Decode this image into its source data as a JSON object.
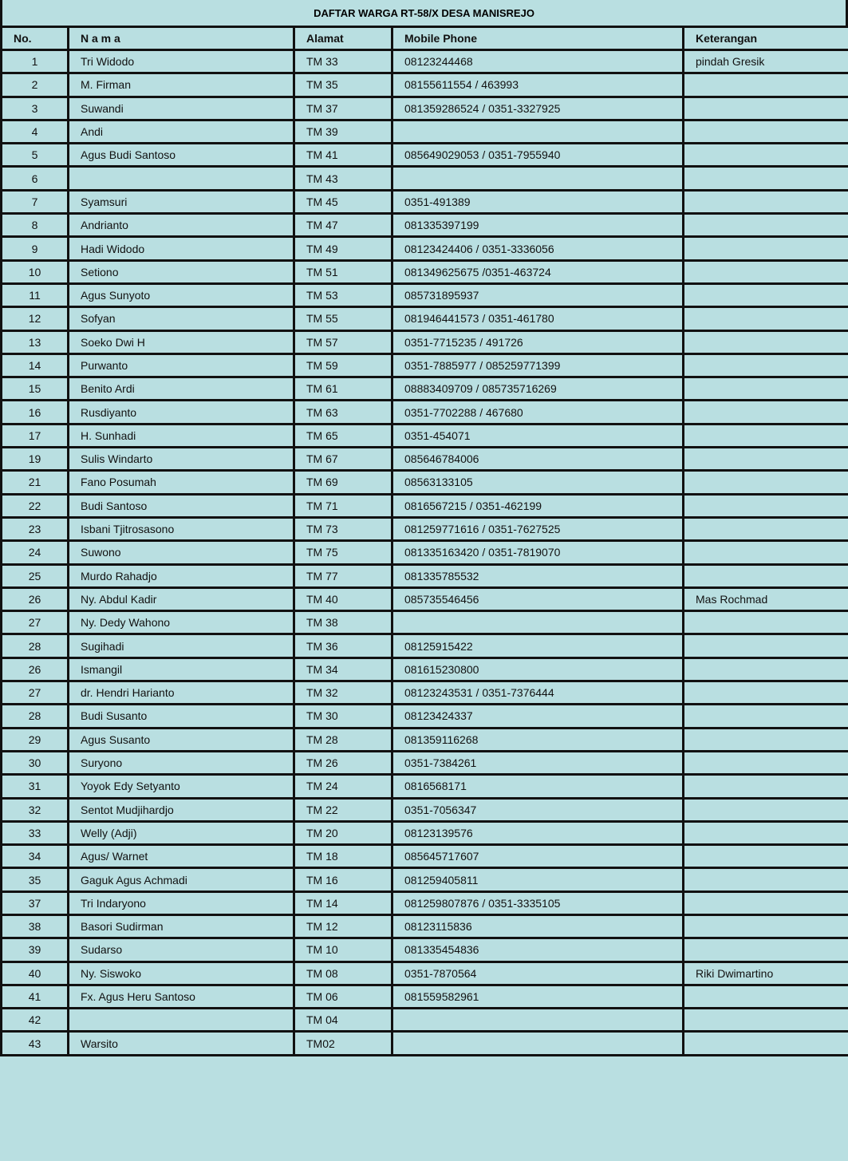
{
  "title": "DAFTAR WARGA RT-58/X DESA MANISREJO",
  "headers": {
    "no": "No.",
    "nama": "N a m a",
    "alamat": "Alamat",
    "phone": "Mobile Phone",
    "keterangan": "Keterangan"
  },
  "colors": {
    "background": "#b9dfe1",
    "border": "#111111"
  },
  "rows": [
    {
      "no": "1",
      "nama": "Tri Widodo",
      "alamat": "TM 33",
      "phone": "08123244468",
      "ket": "pindah Gresik"
    },
    {
      "no": "2",
      "nama": "M. Firman",
      "alamat": "TM 35",
      "phone": "08155611554 / 463993",
      "ket": ""
    },
    {
      "no": "3",
      "nama": "Suwandi",
      "alamat": "TM 37",
      "phone": "081359286524 / 0351-3327925",
      "ket": ""
    },
    {
      "no": "4",
      "nama": "Andi",
      "alamat": "TM 39",
      "phone": "",
      "ket": ""
    },
    {
      "no": "5",
      "nama": "Agus Budi Santoso",
      "alamat": "TM 41",
      "phone": "085649029053 / 0351-7955940",
      "ket": ""
    },
    {
      "no": "6",
      "nama": "",
      "alamat": "TM 43",
      "phone": "",
      "ket": ""
    },
    {
      "no": "7",
      "nama": "Syamsuri",
      "alamat": "TM 45",
      "phone": "0351-491389",
      "ket": ""
    },
    {
      "no": "8",
      "nama": "Andrianto",
      "alamat": "TM 47",
      "phone": "081335397199",
      "ket": ""
    },
    {
      "no": "9",
      "nama": "Hadi Widodo",
      "alamat": "TM 49",
      "phone": "08123424406 / 0351-3336056",
      "ket": ""
    },
    {
      "no": "10",
      "nama": "Setiono",
      "alamat": "TM 51",
      "phone": "081349625675 /0351-463724",
      "ket": ""
    },
    {
      "no": "11",
      "nama": "Agus Sunyoto",
      "alamat": "TM 53",
      "phone": "085731895937",
      "ket": ""
    },
    {
      "no": "12",
      "nama": "Sofyan",
      "alamat": "TM 55",
      "phone": "081946441573 / 0351-461780",
      "ket": ""
    },
    {
      "no": "13",
      "nama": "Soeko Dwi H",
      "alamat": "TM 57",
      "phone": "0351-7715235 / 491726",
      "ket": ""
    },
    {
      "no": "14",
      "nama": "Purwanto",
      "alamat": "TM 59",
      "phone": "0351-7885977 / 085259771399",
      "ket": ""
    },
    {
      "no": "15",
      "nama": "Benito Ardi",
      "alamat": "TM 61",
      "phone": "08883409709 / 085735716269",
      "ket": ""
    },
    {
      "no": "16",
      "nama": "Rusdiyanto",
      "alamat": "TM 63",
      "phone": "0351-7702288 / 467680",
      "ket": ""
    },
    {
      "no": "17",
      "nama": "H. Sunhadi",
      "alamat": "TM 65",
      "phone": "0351-454071",
      "ket": ""
    },
    {
      "no": "19",
      "nama": "Sulis Windarto",
      "alamat": "TM 67",
      "phone": "085646784006",
      "ket": ""
    },
    {
      "no": "21",
      "nama": "Fano Posumah",
      "alamat": "TM 69",
      "phone": "08563133105",
      "ket": ""
    },
    {
      "no": "22",
      "nama": "Budi Santoso",
      "alamat": "TM 71",
      "phone": "0816567215 / 0351-462199",
      "ket": ""
    },
    {
      "no": "23",
      "nama": "Isbani Tjitrosasono",
      "alamat": "TM 73",
      "phone": "081259771616 / 0351-7627525",
      "ket": ""
    },
    {
      "no": "24",
      "nama": "Suwono",
      "alamat": "TM 75",
      "phone": "081335163420 / 0351-7819070",
      "ket": ""
    },
    {
      "no": "25",
      "nama": "Murdo Rahadjo",
      "alamat": "TM 77",
      "phone": "081335785532",
      "ket": ""
    },
    {
      "no": "26",
      "nama": "Ny. Abdul Kadir",
      "alamat": "TM 40",
      "phone": "085735546456",
      "ket": "Mas Rochmad"
    },
    {
      "no": "27",
      "nama": "Ny. Dedy Wahono",
      "alamat": "TM 38",
      "phone": "",
      "ket": ""
    },
    {
      "no": "28",
      "nama": "Sugihadi",
      "alamat": "TM 36",
      "phone": "08125915422",
      "ket": ""
    },
    {
      "no": "26",
      "nama": "Ismangil",
      "alamat": "TM 34",
      "phone": "081615230800",
      "ket": ""
    },
    {
      "no": "27",
      "nama": "dr. Hendri Harianto",
      "alamat": "TM 32",
      "phone": "08123243531 / 0351-7376444",
      "ket": ""
    },
    {
      "no": "28",
      "nama": "Budi Susanto",
      "alamat": "TM 30",
      "phone": "08123424337",
      "ket": ""
    },
    {
      "no": "29",
      "nama": "Agus Susanto",
      "alamat": "TM 28",
      "phone": "081359116268",
      "ket": ""
    },
    {
      "no": "30",
      "nama": "Suryono",
      "alamat": "TM 26",
      "phone": "0351-7384261",
      "ket": ""
    },
    {
      "no": "31",
      "nama": "Yoyok Edy Setyanto",
      "alamat": "TM 24",
      "phone": "0816568171",
      "ket": ""
    },
    {
      "no": "32",
      "nama": "Sentot Mudjihardjo",
      "alamat": "TM 22",
      "phone": "0351-7056347",
      "ket": ""
    },
    {
      "no": "33",
      "nama": "Welly (Adji)",
      "alamat": "TM 20",
      "phone": "08123139576",
      "ket": ""
    },
    {
      "no": "34",
      "nama": "Agus/ Warnet",
      "alamat": "TM 18",
      "phone": "085645717607",
      "ket": ""
    },
    {
      "no": "35",
      "nama": "Gaguk Agus Achmadi",
      "alamat": "TM 16",
      "phone": "081259405811",
      "ket": ""
    },
    {
      "no": "37",
      "nama": "Tri Indaryono",
      "alamat": "TM 14",
      "phone": "081259807876 / 0351-3335105",
      "ket": ""
    },
    {
      "no": "38",
      "nama": "Basori Sudirman",
      "alamat": "TM 12",
      "phone": "08123115836",
      "ket": ""
    },
    {
      "no": "39",
      "nama": "Sudarso",
      "alamat": "TM 10",
      "phone": "081335454836",
      "ket": ""
    },
    {
      "no": "40",
      "nama": "Ny. Siswoko",
      "alamat": "TM 08",
      "phone": "0351-7870564",
      "ket": "Riki Dwimartino"
    },
    {
      "no": "41",
      "nama": "Fx. Agus Heru Santoso",
      "alamat": "TM 06",
      "phone": "081559582961",
      "ket": ""
    },
    {
      "no": "42",
      "nama": "",
      "alamat": "TM 04",
      "phone": "",
      "ket": ""
    },
    {
      "no": "43",
      "nama": "Warsito",
      "alamat": "TM02",
      "phone": "",
      "ket": ""
    }
  ]
}
